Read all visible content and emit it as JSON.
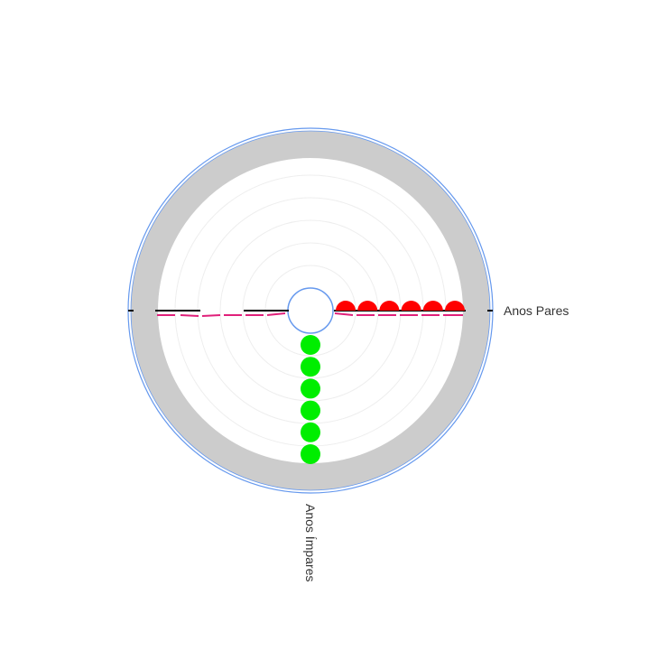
{
  "chart_data": {
    "type": "radial-dot",
    "axes": [
      {
        "label": "Anos Pares",
        "direction": "east"
      },
      {
        "label": "Anos Ímpares",
        "direction": "south"
      }
    ],
    "rings": 5,
    "series": [
      {
        "axis": "Anos Pares",
        "count": 6,
        "marker": "half-dot"
      },
      {
        "axis": "Anos Ímpares",
        "count": 6,
        "marker": "dot"
      }
    ],
    "colors": {
      "pares": "#ff0000",
      "impares": "#00ee00",
      "ring": "#cccccc",
      "outline": "#6699ee",
      "axis_line": "#000000",
      "dash": "#e0207a",
      "grid": "#eeeeee"
    }
  }
}
